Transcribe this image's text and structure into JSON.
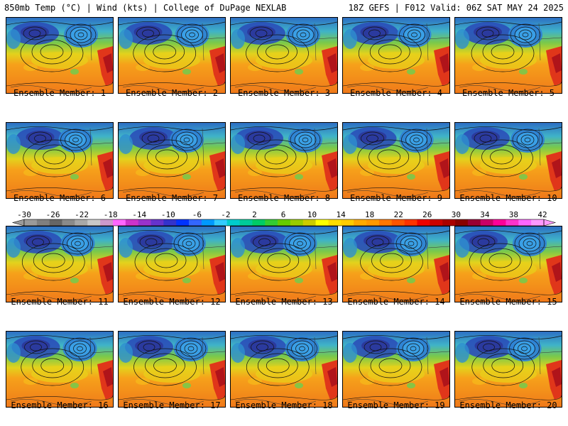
{
  "header": {
    "left_title": "850mb Temp (°C) | Wind (kts) | College of DuPage NEXLAB",
    "right_title": "18Z GEFS | F012 Valid: 06Z SAT MAY 24 2025"
  },
  "panels": [
    {
      "caption": "Ensemble Member: 1"
    },
    {
      "caption": "Ensemble Member: 2"
    },
    {
      "caption": "Ensemble Member: 3"
    },
    {
      "caption": "Ensemble Member: 4"
    },
    {
      "caption": "Ensemble Member: 5"
    },
    {
      "caption": "Ensemble Member: 6"
    },
    {
      "caption": "Ensemble Member: 7"
    },
    {
      "caption": "Ensemble Member: 8"
    },
    {
      "caption": "Ensemble Member: 9"
    },
    {
      "caption": "Ensemble Member: 10"
    },
    {
      "caption": "Ensemble Member: 11"
    },
    {
      "caption": "Ensemble Member: 12"
    },
    {
      "caption": "Ensemble Member: 13"
    },
    {
      "caption": "Ensemble Member: 14"
    },
    {
      "caption": "Ensemble Member: 15"
    },
    {
      "caption": "Ensemble Member: 16"
    },
    {
      "caption": "Ensemble Member: 17"
    },
    {
      "caption": "Ensemble Member: 18"
    },
    {
      "caption": "Ensemble Member: 19"
    },
    {
      "caption": "Ensemble Member: 20"
    }
  ],
  "colorbar": {
    "labels": [
      "-30",
      "-26",
      "-22",
      "-18",
      "-14",
      "-10",
      "-6",
      "-2",
      "2",
      "6",
      "10",
      "14",
      "18",
      "22",
      "26",
      "30",
      "34",
      "38",
      "42"
    ],
    "colors": [
      "#9a9a9a",
      "#7f7f7f",
      "#666666",
      "#8a8a8a",
      "#a8a8a8",
      "#c8c8c8",
      "#cc99cc",
      "#ff66ff",
      "#cc33cc",
      "#9933cc",
      "#6633cc",
      "#3333cc",
      "#0033ff",
      "#3366ff",
      "#0099ff",
      "#33ccff",
      "#00cccc",
      "#00cc99",
      "#00cc66",
      "#33cc33",
      "#66cc00",
      "#99cc00",
      "#cccc00",
      "#ffff00",
      "#ffdd00",
      "#ffcc00",
      "#ffaa00",
      "#ff9900",
      "#ff7700",
      "#ff5500",
      "#ff3300",
      "#ee0000",
      "#cc0000",
      "#aa0000",
      "#880000",
      "#990033",
      "#cc0066",
      "#ff0099",
      "#ff33cc",
      "#ff66ff",
      "#ff99ff"
    ]
  }
}
